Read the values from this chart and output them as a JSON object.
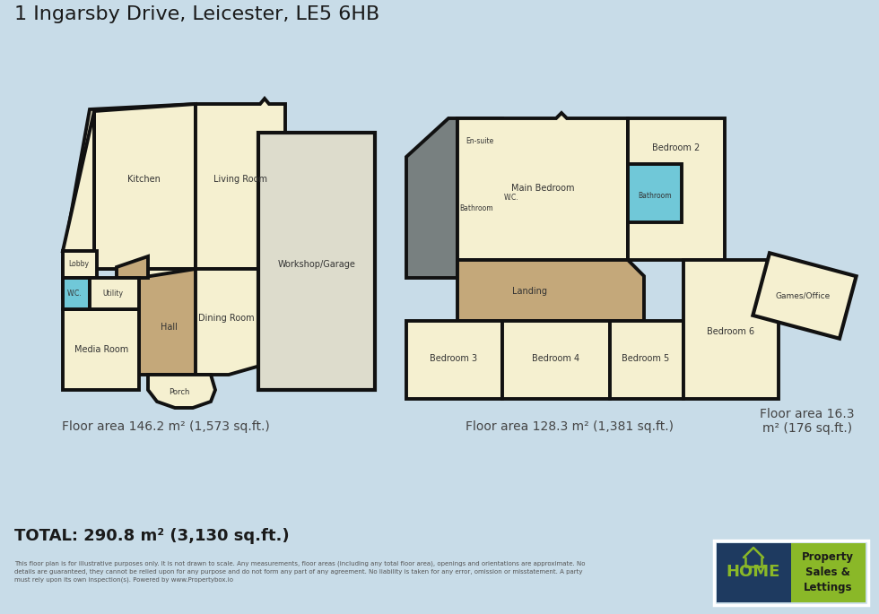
{
  "title": "1 Ingarsby Drive, Leicester, LE5 6HB",
  "bg_color": "#c8dce8",
  "wall_color": "#111111",
  "room_yellow": "#f5f0d0",
  "room_tan": "#c4a87a",
  "room_blue": "#70c8d8",
  "room_gray": "#788080",
  "room_garage": "#dddccc",
  "floor1_label": "Floor area 146.2 m² (1,573 sq.ft.)",
  "floor2_label": "Floor area 128.3 m² (1,381 sq.ft.)",
  "floor3_label": "Floor area 16.3\nm² (176 sq.ft.)",
  "total_label": "TOTAL: 290.8 m² (3,130 sq.ft.)",
  "disclaimer": "This floor plan is for illustrative purposes only. It is not drawn to scale. Any measurements, floor areas (including any total floor area), openings and orientations are approximate. No\ndetails are guaranteed, they cannot be relied upon for any purpose and do not form any part of any agreement. No liability is taken for any error, omission or misstatement. A party\nmust rely upon its own inspection(s). Powered by www.Propertybox.io",
  "logo_bg_dark": "#1e3a60",
  "logo_bg_green": "#8ab828"
}
